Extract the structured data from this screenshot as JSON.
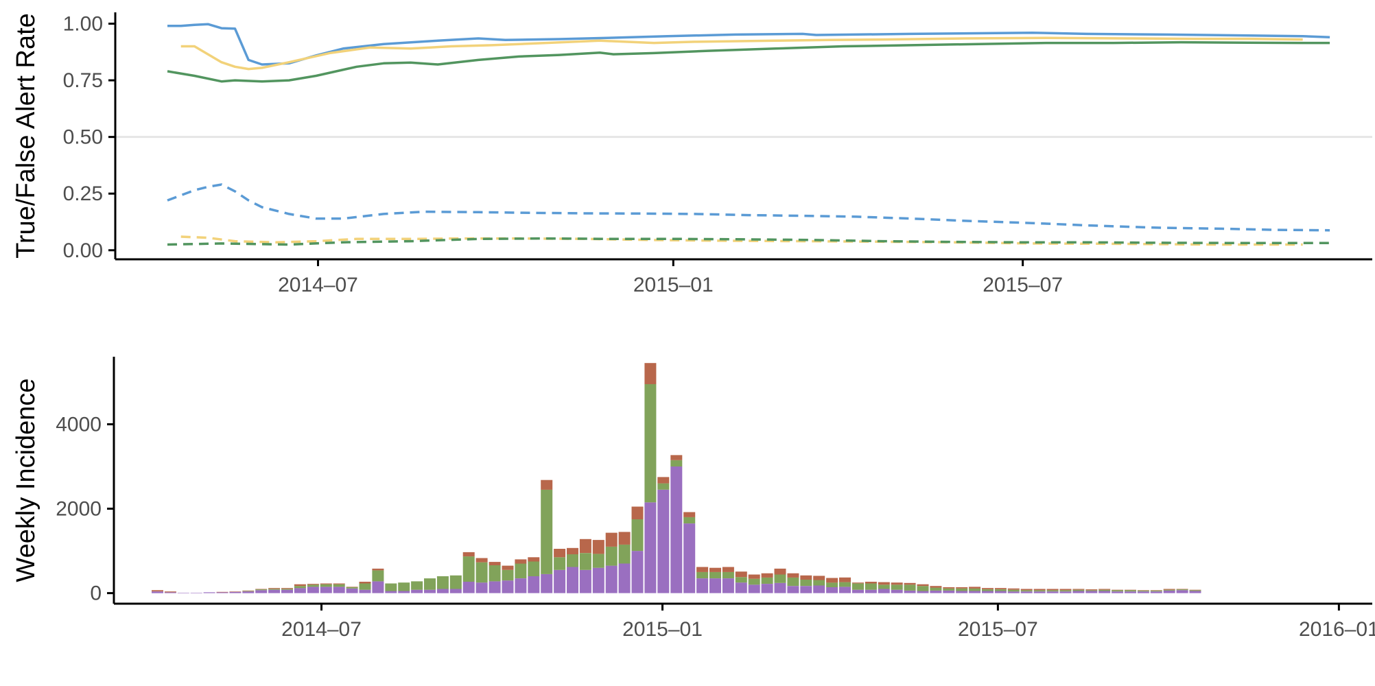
{
  "chart_data": [
    {
      "type": "line",
      "ylabel": "True/False Alert Rate",
      "xlabel": "",
      "title": "",
      "x_ticks": [
        "2014-07-01",
        "2015-01-01",
        "2015-07-01"
      ],
      "x_tick_labels": [
        "2014–07",
        "2015–01",
        "2015–07"
      ],
      "xlim": [
        "2014-03-18",
        "2015-12-29"
      ],
      "y_ticks": [
        0,
        0.25,
        0.5,
        0.75,
        1.0
      ],
      "y_tick_labels": [
        "0.00",
        "0.25",
        "0.50",
        "0.75",
        "1.00"
      ],
      "ylim": [
        -0.04,
        1.05
      ],
      "reference_line": 0.5,
      "colors": {
        "blue": "#5b9bd5",
        "yellow": "#f2d27a",
        "green": "#52955f",
        "reference": "#e5e5e5",
        "axis": "#000000"
      },
      "series": [
        {
          "color": "blue",
          "dash": "solid",
          "points": [
            [
              "2014-04-14",
              0.99
            ],
            [
              "2014-04-21",
              0.99
            ],
            [
              "2014-04-28",
              0.995
            ],
            [
              "2014-05-05",
              0.998
            ],
            [
              "2014-05-12",
              0.98
            ],
            [
              "2014-05-19",
              0.978
            ],
            [
              "2014-05-26",
              0.84
            ],
            [
              "2014-06-02",
              0.82
            ],
            [
              "2014-06-16",
              0.825
            ],
            [
              "2014-06-30",
              0.86
            ],
            [
              "2014-07-14",
              0.89
            ],
            [
              "2014-08-04",
              0.91
            ],
            [
              "2014-09-01",
              0.925
            ],
            [
              "2014-09-22",
              0.935
            ],
            [
              "2014-10-06",
              0.928
            ],
            [
              "2014-11-03",
              0.932
            ],
            [
              "2014-12-01",
              0.938
            ],
            [
              "2014-12-29",
              0.945
            ],
            [
              "2015-02-02",
              0.952
            ],
            [
              "2015-03-09",
              0.955
            ],
            [
              "2015-03-16",
              0.95
            ],
            [
              "2015-05-04",
              0.955
            ],
            [
              "2015-07-06",
              0.96
            ],
            [
              "2015-08-03",
              0.955
            ],
            [
              "2015-09-14",
              0.952
            ],
            [
              "2015-10-26",
              0.948
            ],
            [
              "2015-11-23",
              0.945
            ],
            [
              "2015-12-07",
              0.94
            ]
          ]
        },
        {
          "color": "yellow",
          "dash": "solid",
          "points": [
            [
              "2014-04-21",
              0.9
            ],
            [
              "2014-04-28",
              0.9
            ],
            [
              "2014-05-12",
              0.83
            ],
            [
              "2014-05-19",
              0.81
            ],
            [
              "2014-05-26",
              0.8
            ],
            [
              "2014-06-02",
              0.805
            ],
            [
              "2014-06-16",
              0.83
            ],
            [
              "2014-07-07",
              0.87
            ],
            [
              "2014-07-28",
              0.895
            ],
            [
              "2014-08-18",
              0.89
            ],
            [
              "2014-09-08",
              0.9
            ],
            [
              "2014-09-29",
              0.905
            ],
            [
              "2014-10-27",
              0.915
            ],
            [
              "2014-11-24",
              0.925
            ],
            [
              "2014-12-22",
              0.915
            ],
            [
              "2015-01-12",
              0.92
            ],
            [
              "2015-02-23",
              0.925
            ],
            [
              "2015-03-23",
              0.928
            ],
            [
              "2015-04-20",
              0.93
            ],
            [
              "2015-06-01",
              0.935
            ],
            [
              "2015-07-13",
              0.937
            ],
            [
              "2015-08-24",
              0.935
            ],
            [
              "2015-09-28",
              0.933
            ],
            [
              "2015-10-26",
              0.933
            ],
            [
              "2015-11-23",
              0.93
            ]
          ]
        },
        {
          "color": "green",
          "dash": "solid",
          "points": [
            [
              "2014-04-14",
              0.79
            ],
            [
              "2014-04-28",
              0.77
            ],
            [
              "2014-05-12",
              0.745
            ],
            [
              "2014-05-19",
              0.75
            ],
            [
              "2014-06-02",
              0.745
            ],
            [
              "2014-06-16",
              0.75
            ],
            [
              "2014-06-30",
              0.77
            ],
            [
              "2014-07-21",
              0.81
            ],
            [
              "2014-08-04",
              0.825
            ],
            [
              "2014-08-18",
              0.828
            ],
            [
              "2014-09-01",
              0.82
            ],
            [
              "2014-09-22",
              0.84
            ],
            [
              "2014-10-13",
              0.855
            ],
            [
              "2014-11-03",
              0.862
            ],
            [
              "2014-11-24",
              0.872
            ],
            [
              "2014-12-01",
              0.865
            ],
            [
              "2014-12-22",
              0.87
            ],
            [
              "2015-01-19",
              0.88
            ],
            [
              "2015-02-23",
              0.89
            ],
            [
              "2015-03-30",
              0.9
            ],
            [
              "2015-05-04",
              0.905
            ],
            [
              "2015-06-08",
              0.91
            ],
            [
              "2015-07-13",
              0.915
            ],
            [
              "2015-08-17",
              0.915
            ],
            [
              "2015-09-21",
              0.918
            ],
            [
              "2015-10-26",
              0.916
            ],
            [
              "2015-11-23",
              0.915
            ],
            [
              "2015-12-07",
              0.915
            ]
          ]
        },
        {
          "color": "blue",
          "dash": "dashed",
          "points": [
            [
              "2014-04-14",
              0.22
            ],
            [
              "2014-04-28",
              0.265
            ],
            [
              "2014-05-05",
              0.28
            ],
            [
              "2014-05-12",
              0.29
            ],
            [
              "2014-05-19",
              0.26
            ],
            [
              "2014-05-26",
              0.22
            ],
            [
              "2014-06-02",
              0.19
            ],
            [
              "2014-06-16",
              0.16
            ],
            [
              "2014-06-30",
              0.14
            ],
            [
              "2014-07-14",
              0.14
            ],
            [
              "2014-08-04",
              0.16
            ],
            [
              "2014-08-25",
              0.17
            ],
            [
              "2014-09-22",
              0.168
            ],
            [
              "2014-10-20",
              0.165
            ],
            [
              "2014-11-17",
              0.163
            ],
            [
              "2014-12-15",
              0.162
            ],
            [
              "2015-01-12",
              0.16
            ],
            [
              "2015-02-09",
              0.155
            ],
            [
              "2015-03-09",
              0.152
            ],
            [
              "2015-04-06",
              0.148
            ],
            [
              "2015-05-04",
              0.14
            ],
            [
              "2015-06-01",
              0.13
            ],
            [
              "2015-07-06",
              0.12
            ],
            [
              "2015-08-03",
              0.11
            ],
            [
              "2015-09-07",
              0.1
            ],
            [
              "2015-10-12",
              0.095
            ],
            [
              "2015-11-09",
              0.09
            ],
            [
              "2015-12-07",
              0.088
            ]
          ]
        },
        {
          "color": "yellow",
          "dash": "dashed",
          "points": [
            [
              "2014-04-21",
              0.06
            ],
            [
              "2014-05-05",
              0.055
            ],
            [
              "2014-05-19",
              0.04
            ],
            [
              "2014-06-09",
              0.035
            ],
            [
              "2014-06-30",
              0.04
            ],
            [
              "2014-07-21",
              0.05
            ],
            [
              "2014-08-18",
              0.05
            ],
            [
              "2014-09-15",
              0.052
            ],
            [
              "2014-10-13",
              0.052
            ],
            [
              "2014-11-17",
              0.05
            ],
            [
              "2014-12-22",
              0.045
            ],
            [
              "2015-01-26",
              0.042
            ],
            [
              "2015-03-09",
              0.04
            ],
            [
              "2015-04-13",
              0.038
            ],
            [
              "2015-05-25",
              0.035
            ],
            [
              "2015-07-06",
              0.03
            ],
            [
              "2015-08-24",
              0.028
            ],
            [
              "2015-10-05",
              0.025
            ],
            [
              "2015-11-23",
              0.025
            ]
          ]
        },
        {
          "color": "green",
          "dash": "dashed",
          "points": [
            [
              "2014-04-14",
              0.025
            ],
            [
              "2014-05-12",
              0.03
            ],
            [
              "2014-06-16",
              0.025
            ],
            [
              "2014-07-14",
              0.035
            ],
            [
              "2014-08-18",
              0.04
            ],
            [
              "2014-09-22",
              0.05
            ],
            [
              "2014-10-27",
              0.052
            ],
            [
              "2014-12-01",
              0.05
            ],
            [
              "2015-01-05",
              0.05
            ],
            [
              "2015-02-09",
              0.048
            ],
            [
              "2015-03-16",
              0.045
            ],
            [
              "2015-04-20",
              0.04
            ],
            [
              "2015-05-25",
              0.037
            ],
            [
              "2015-06-29",
              0.035
            ],
            [
              "2015-08-03",
              0.035
            ],
            [
              "2015-09-07",
              0.033
            ],
            [
              "2015-10-12",
              0.032
            ],
            [
              "2015-11-16",
              0.032
            ],
            [
              "2015-12-07",
              0.032
            ]
          ]
        }
      ]
    },
    {
      "type": "bar",
      "stacked": true,
      "ylabel": "Weekly Incidence",
      "xlabel": "",
      "title": "",
      "x_ticks": [
        "2014-07-01",
        "2015-01-01",
        "2015-07-01",
        "2016-01-01"
      ],
      "x_tick_labels": [
        "2014–07",
        "2015–01",
        "2015–07",
        "2016–01"
      ],
      "xlim": [
        "2014-03-11",
        "2016-01-19"
      ],
      "y_ticks": [
        0,
        2000,
        4000
      ],
      "y_tick_labels": [
        "0",
        "2000",
        "4000"
      ],
      "ylim": [
        -250,
        5600
      ],
      "stack_colors": [
        "#9a6fc0",
        "#81a35a",
        "#b8674b"
      ],
      "weeks": [
        "2014-03-31",
        "2014-04-07",
        "2014-04-14",
        "2014-04-21",
        "2014-04-28",
        "2014-05-05",
        "2014-05-12",
        "2014-05-19",
        "2014-05-26",
        "2014-06-02",
        "2014-06-09",
        "2014-06-16",
        "2014-06-23",
        "2014-06-30",
        "2014-07-07",
        "2014-07-14",
        "2014-07-21",
        "2014-07-28",
        "2014-08-04",
        "2014-08-11",
        "2014-08-18",
        "2014-08-25",
        "2014-09-01",
        "2014-09-08",
        "2014-09-15",
        "2014-09-22",
        "2014-09-29",
        "2014-10-06",
        "2014-10-13",
        "2014-10-20",
        "2014-10-27",
        "2014-11-03",
        "2014-11-10",
        "2014-11-17",
        "2014-11-24",
        "2014-12-01",
        "2014-12-08",
        "2014-12-15",
        "2014-12-22",
        "2014-12-29",
        "2015-01-05",
        "2015-01-12",
        "2015-01-19",
        "2015-01-26",
        "2015-02-02",
        "2015-02-09",
        "2015-02-16",
        "2015-02-23",
        "2015-03-02",
        "2015-03-09",
        "2015-03-16",
        "2015-03-23",
        "2015-03-30",
        "2015-04-06",
        "2015-04-13",
        "2015-04-20",
        "2015-04-27",
        "2015-05-04",
        "2015-05-11",
        "2015-05-18",
        "2015-05-25",
        "2015-06-01",
        "2015-06-08",
        "2015-06-15",
        "2015-06-22",
        "2015-06-29",
        "2015-07-06",
        "2015-07-13",
        "2015-07-20",
        "2015-07-27",
        "2015-08-03",
        "2015-08-10",
        "2015-08-17",
        "2015-08-24",
        "2015-08-31",
        "2015-09-07",
        "2015-09-14",
        "2015-09-21",
        "2015-09-28",
        "2015-10-05",
        "2015-10-12"
      ],
      "series": [
        {
          "values": [
            40,
            20,
            10,
            10,
            20,
            20,
            30,
            40,
            70,
            80,
            80,
            120,
            150,
            150,
            150,
            110,
            80,
            280,
            50,
            50,
            80,
            80,
            100,
            100,
            270,
            250,
            280,
            300,
            350,
            400,
            450,
            550,
            620,
            550,
            600,
            650,
            700,
            1000,
            2150,
            2450,
            3000,
            1650,
            350,
            350,
            350,
            250,
            200,
            220,
            240,
            170,
            170,
            180,
            140,
            150,
            80,
            80,
            100,
            80,
            60,
            50,
            60,
            60,
            50,
            50,
            50,
            50,
            40,
            40,
            40,
            40,
            40,
            50,
            50,
            50,
            40,
            40,
            40,
            40,
            60,
            70,
            50
          ]
        },
        {
          "values": [
            0,
            0,
            0,
            0,
            0,
            0,
            0,
            10,
            20,
            20,
            20,
            50,
            50,
            60,
            60,
            30,
            150,
            260,
            180,
            200,
            200,
            270,
            300,
            320,
            600,
            480,
            380,
            250,
            350,
            350,
            2000,
            300,
            300,
            400,
            330,
            450,
            450,
            750,
            2800,
            150,
            150,
            150,
            150,
            150,
            150,
            130,
            140,
            150,
            200,
            200,
            150,
            130,
            110,
            110,
            150,
            150,
            100,
            120,
            140,
            120,
            70,
            50,
            60,
            60,
            40,
            40,
            40,
            30,
            30,
            30,
            30,
            30,
            20,
            30,
            30,
            30,
            20,
            20,
            20,
            20,
            20
          ]
        },
        {
          "values": [
            30,
            20,
            0,
            0,
            0,
            10,
            10,
            10,
            10,
            20,
            20,
            40,
            20,
            20,
            20,
            10,
            40,
            40,
            0,
            0,
            0,
            0,
            0,
            0,
            100,
            100,
            80,
            100,
            100,
            100,
            230,
            200,
            150,
            330,
            330,
            330,
            300,
            300,
            500,
            150,
            120,
            120,
            120,
            100,
            120,
            130,
            100,
            100,
            140,
            100,
            100,
            100,
            110,
            110,
            20,
            40,
            60,
            50,
            40,
            40,
            40,
            30,
            30,
            40,
            30,
            30,
            30,
            30,
            30,
            30,
            30,
            20,
            20,
            20,
            10,
            10,
            10,
            10,
            20,
            10,
            10
          ]
        }
      ]
    }
  ]
}
